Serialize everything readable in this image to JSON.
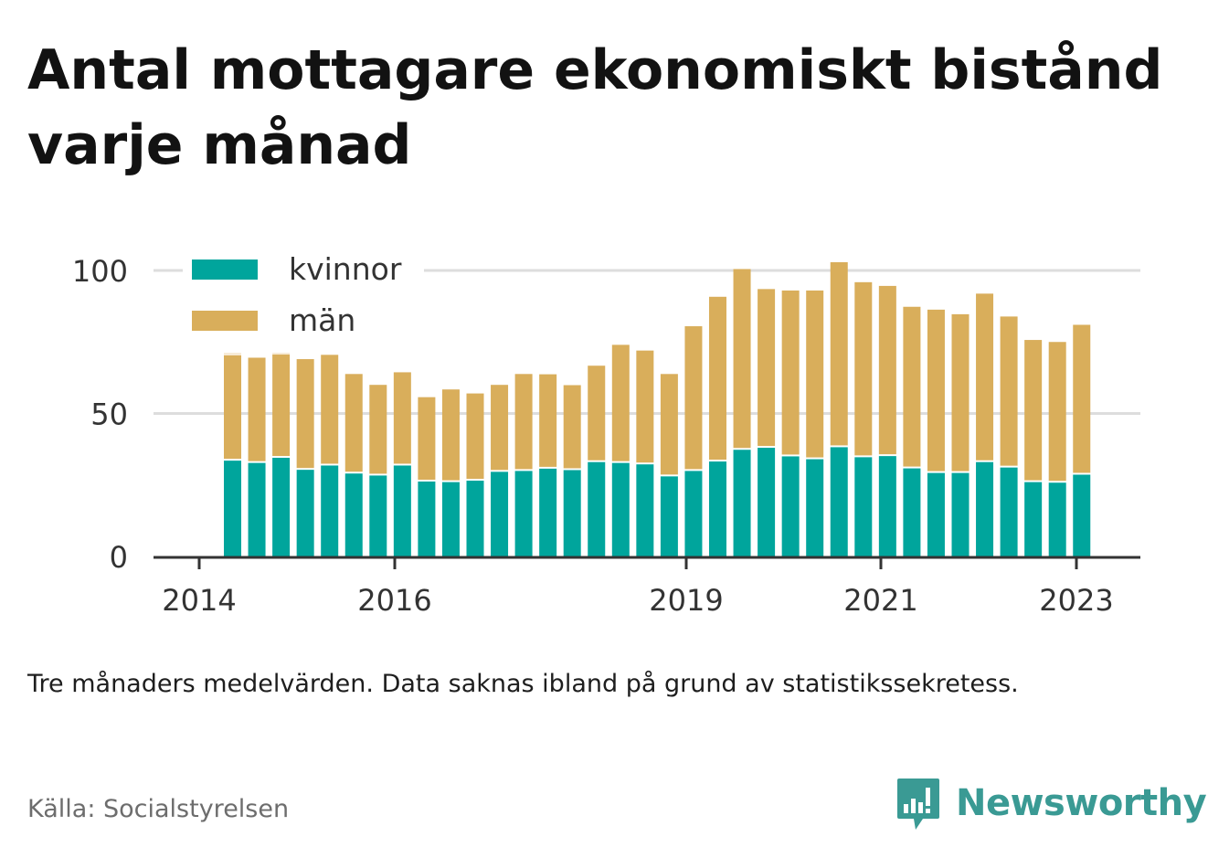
{
  "title": "Antal mottagare ekonomiskt bistånd varje månad",
  "note": "Tre månaders medelvärden. Data saknas ibland på grund av statistikssekretess.",
  "source": "Källa: Socialstyrelsen",
  "brand": "Newsworthy",
  "colors": {
    "kvinnor": "#00a59c",
    "man": "#d9ae5b",
    "missing": "#f7ebd7",
    "grid": "#dddddd",
    "axis": "#333333",
    "brand": "#3a9a94"
  },
  "chart_data": {
    "type": "bar",
    "stacked": true,
    "x_ticks": [
      "2014",
      "2016",
      "2019",
      "2021",
      "2023"
    ],
    "y_ticks": [
      "0",
      "50",
      "100"
    ],
    "ylim": [
      0,
      105
    ],
    "grid": true,
    "legend_position": "top-left",
    "series": [
      {
        "name": "kvinnor",
        "values": [
          33.5,
          32.7,
          34.5,
          30.3,
          31.8,
          29.0,
          28.3,
          31.8,
          26.2,
          26.0,
          26.5,
          29.6,
          29.9,
          30.7,
          30.2,
          33.0,
          32.7,
          32.2,
          28.0,
          29.9,
          33.2,
          37.3,
          38.0,
          35.0,
          34.0,
          38.2,
          34.7,
          35.1,
          30.8,
          29.2,
          29.2,
          33.0,
          31.1,
          26.0,
          25.8,
          28.6
        ]
      },
      {
        "name": "män",
        "values": [
          36.8,
          36.8,
          36.1,
          38.7,
          38.7,
          34.8,
          31.7,
          32.6,
          29.5,
          32.4,
          30.5,
          30.4,
          33.9,
          33.0,
          29.7,
          33.7,
          41.3,
          39.8,
          35.8,
          50.6,
          57.6,
          63.2,
          55.5,
          58.0,
          59.0,
          64.7,
          61.2,
          59.5,
          56.5,
          57.1,
          55.5,
          58.9,
          52.8,
          49.7,
          49.2,
          52.4
        ]
      }
    ],
    "missing_marks": [
      {
        "bar": 0,
        "value": 73.3
      },
      {
        "bar": 2,
        "value": 73.6
      }
    ]
  }
}
